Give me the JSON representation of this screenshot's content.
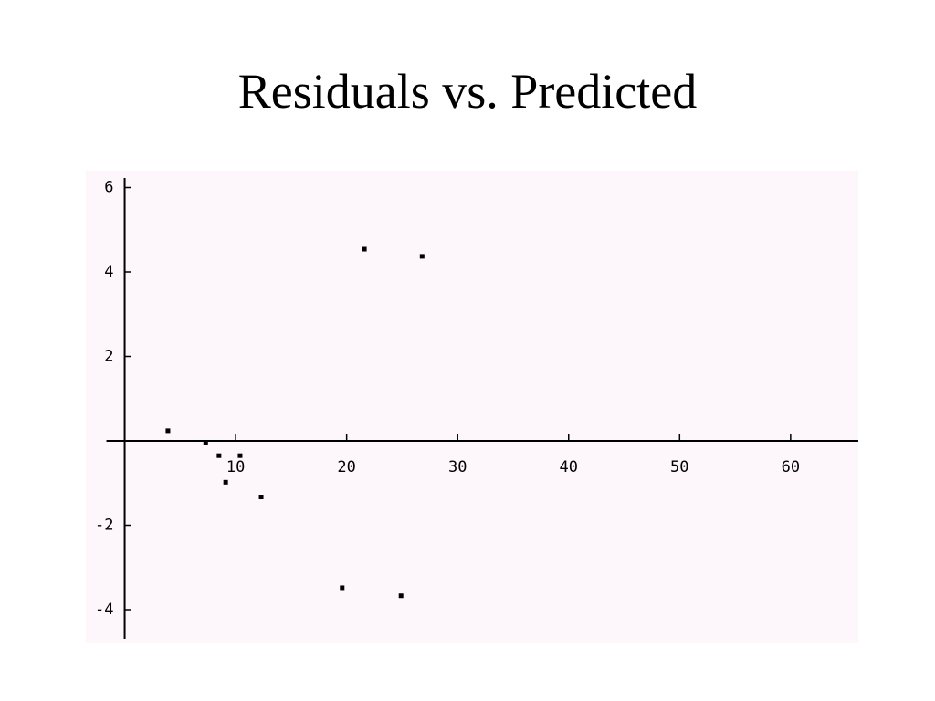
{
  "chart_data": {
    "type": "scatter",
    "title": "Residuals vs. Predicted",
    "x": [
      3.9,
      7.3,
      8.5,
      10.4,
      9.1,
      12.3,
      19.6,
      21.6,
      24.9,
      26.8
    ],
    "values": [
      0.24,
      -0.04,
      -0.35,
      -0.35,
      -0.98,
      -1.33,
      -3.48,
      4.54,
      -3.67,
      4.37
    ],
    "color": "#000000",
    "xlim": [
      -3.5,
      66.1
    ],
    "ylim": [
      -4.8,
      6.4
    ],
    "xticks": [
      10,
      20,
      30,
      40,
      50,
      60
    ],
    "yticks": [
      -4,
      -2,
      2,
      4,
      6
    ],
    "background": "#fdf6fb"
  }
}
